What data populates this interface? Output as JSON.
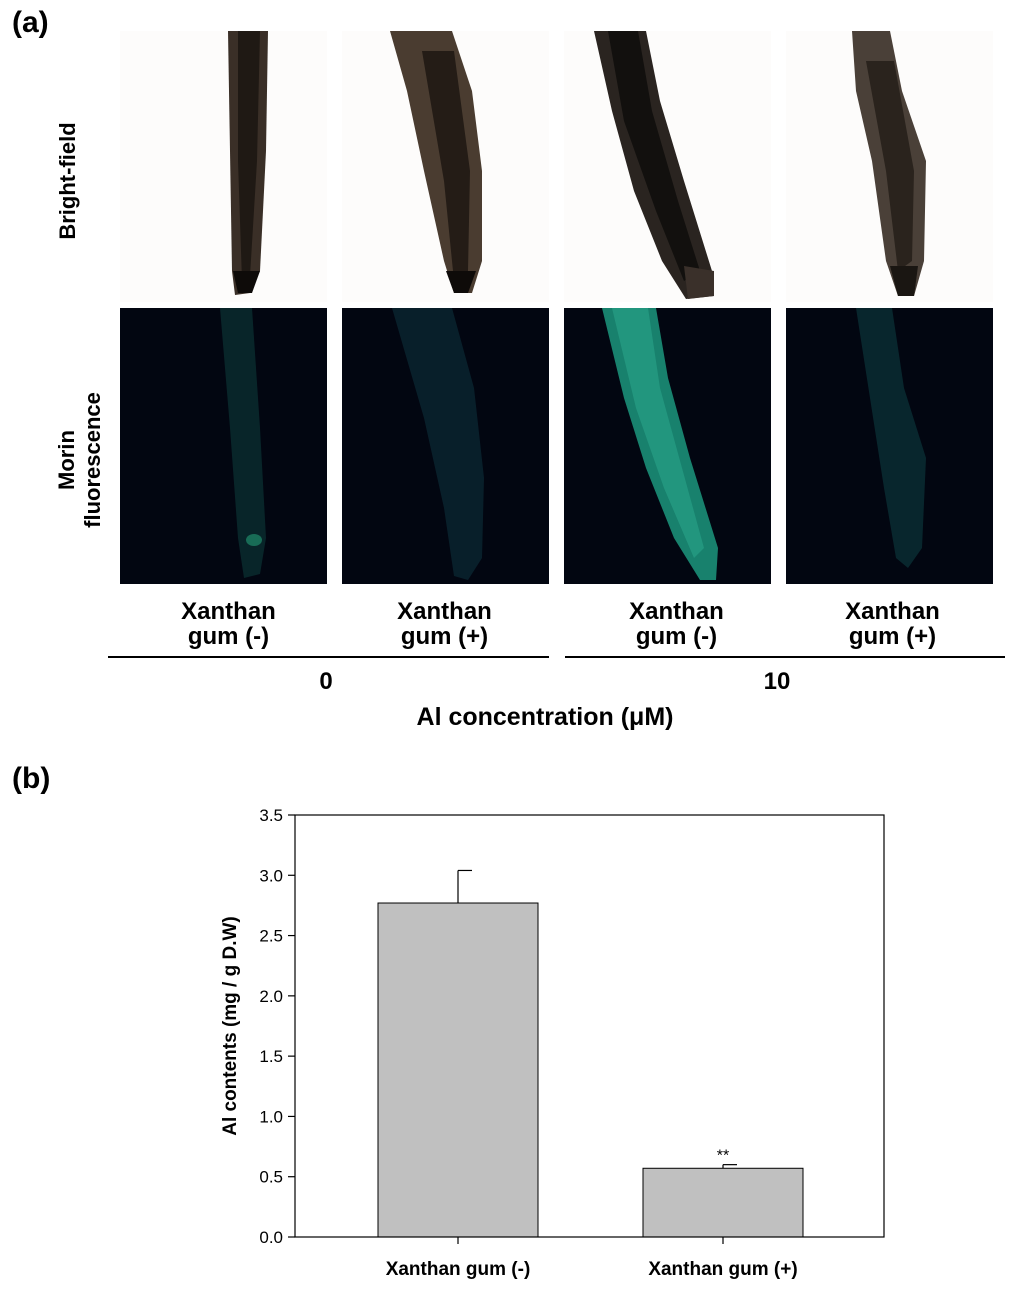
{
  "panel_a": {
    "label": "(a)",
    "row_labels": {
      "bright_field": "Bright-field",
      "morin_line1": "Morin",
      "morin_line2": "fluorescence"
    },
    "columns": [
      {
        "line1": "Xanthan",
        "line2": "gum (-)"
      },
      {
        "line1": "Xanthan",
        "line2": "gum (+)"
      },
      {
        "line1": "Xanthan",
        "line2": "gum (-)"
      },
      {
        "line1": "Xanthan",
        "line2": "gum (+)"
      }
    ],
    "concentrations": [
      "0",
      "10"
    ],
    "axis_label": "Al concentration (μM)"
  },
  "panel_b": {
    "label": "(b)"
  },
  "chart_data": {
    "type": "bar",
    "categories": [
      "Xanthan gum (-)",
      "Xanthan gum (+)"
    ],
    "values": [
      2.77,
      0.57
    ],
    "errors": [
      0.27,
      0.03
    ],
    "annotations": [
      "",
      "**"
    ],
    "ylabel": "Al contents (mg / g D.W)",
    "xlabel": "",
    "ylim": [
      0,
      3.5
    ],
    "yticks": [
      "0.0",
      "0.5",
      "1.0",
      "1.5",
      "2.0",
      "2.5",
      "3.0",
      "3.5"
    ],
    "bar_color": "#c0c0c0",
    "grid": false
  }
}
